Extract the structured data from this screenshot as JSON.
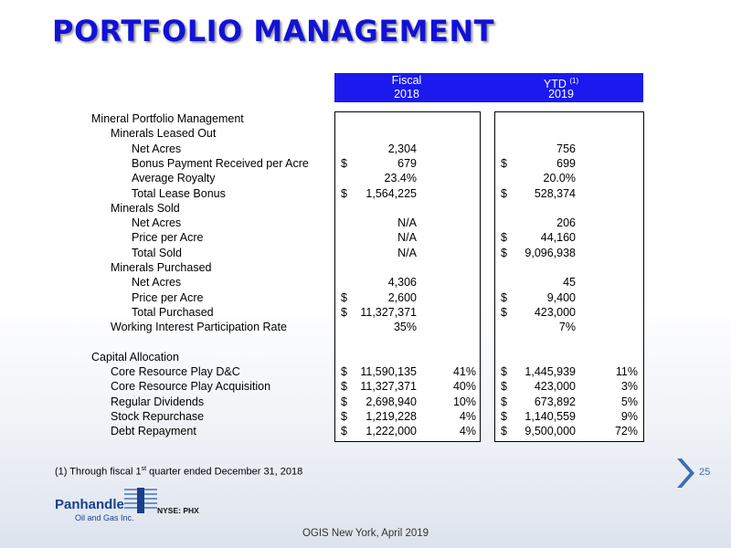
{
  "title": "PORTFOLIO MANAGEMENT",
  "headers": {
    "fiscal_line1": "Fiscal",
    "fiscal_line2": "2018",
    "ytd_line1": "YTD",
    "ytd_sup": "(1)",
    "ytd_line2": "2019"
  },
  "rows": [
    {
      "label": "Mineral Portfolio Management",
      "indent": 0,
      "f_d": "",
      "f_v": "",
      "f_p": "",
      "y_d": "",
      "y_v": "",
      "y_p": ""
    },
    {
      "label": "Minerals Leased Out",
      "indent": 1,
      "f_d": "",
      "f_v": "",
      "f_p": "",
      "y_d": "",
      "y_v": "",
      "y_p": ""
    },
    {
      "label": "Net Acres",
      "indent": 2,
      "f_d": "",
      "f_v": "2,304",
      "f_p": "",
      "y_d": "",
      "y_v": "756",
      "y_p": ""
    },
    {
      "label": "Bonus Payment Received per Acre",
      "indent": 2,
      "f_d": "$",
      "f_v": "679",
      "f_p": "",
      "y_d": "$",
      "y_v": "699",
      "y_p": ""
    },
    {
      "label": "Average Royalty",
      "indent": 2,
      "f_d": "",
      "f_v": "23.4%",
      "f_p": "",
      "y_d": "",
      "y_v": "20.0%",
      "y_p": ""
    },
    {
      "label": "Total Lease Bonus",
      "indent": 2,
      "f_d": "$",
      "f_v": "1,564,225",
      "f_p": "",
      "y_d": "$",
      "y_v": "528,374",
      "y_p": ""
    },
    {
      "label": "Minerals Sold",
      "indent": 1,
      "f_d": "",
      "f_v": "",
      "f_p": "",
      "y_d": "",
      "y_v": "",
      "y_p": ""
    },
    {
      "label": "Net Acres",
      "indent": 2,
      "f_d": "",
      "f_v": "N/A",
      "f_p": "",
      "y_d": "",
      "y_v": "206",
      "y_p": ""
    },
    {
      "label": "Price per Acre",
      "indent": 2,
      "f_d": "",
      "f_v": "N/A",
      "f_p": "",
      "y_d": "$",
      "y_v": "44,160",
      "y_p": ""
    },
    {
      "label": "Total Sold",
      "indent": 2,
      "f_d": "",
      "f_v": "N/A",
      "f_p": "",
      "y_d": "$",
      "y_v": "9,096,938",
      "y_p": ""
    },
    {
      "label": "Minerals Purchased",
      "indent": 1,
      "f_d": "",
      "f_v": "",
      "f_p": "",
      "y_d": "",
      "y_v": "",
      "y_p": ""
    },
    {
      "label": "Net Acres",
      "indent": 2,
      "f_d": "",
      "f_v": "4,306",
      "f_p": "",
      "y_d": "",
      "y_v": "45",
      "y_p": ""
    },
    {
      "label": "Price per Acre",
      "indent": 2,
      "f_d": "$",
      "f_v": "2,600",
      "f_p": "",
      "y_d": "$",
      "y_v": "9,400",
      "y_p": ""
    },
    {
      "label": "Total Purchased",
      "indent": 2,
      "f_d": "$",
      "f_v": "11,327,371",
      "f_p": "",
      "y_d": "$",
      "y_v": "423,000",
      "y_p": ""
    },
    {
      "label": "Working Interest Participation Rate",
      "indent": 1,
      "f_d": "",
      "f_v": "35%",
      "f_p": "",
      "y_d": "",
      "y_v": "7%",
      "y_p": ""
    },
    {
      "label": "",
      "indent": 0,
      "f_d": "",
      "f_v": "",
      "f_p": "",
      "y_d": "",
      "y_v": "",
      "y_p": ""
    },
    {
      "label": "Capital Allocation",
      "indent": 0,
      "f_d": "",
      "f_v": "",
      "f_p": "",
      "y_d": "",
      "y_v": "",
      "y_p": ""
    },
    {
      "label": "Core Resource Play D&C",
      "indent": 1,
      "f_d": "$",
      "f_v": "11,590,135",
      "f_p": "41%",
      "y_d": "$",
      "y_v": "1,445,939",
      "y_p": "11%"
    },
    {
      "label": "Core Resource Play Acquisition",
      "indent": 1,
      "f_d": "$",
      "f_v": "11,327,371",
      "f_p": "40%",
      "y_d": "$",
      "y_v": "423,000",
      "y_p": "3%"
    },
    {
      "label": "Regular Dividends",
      "indent": 1,
      "f_d": "$",
      "f_v": "2,698,940",
      "f_p": "10%",
      "y_d": "$",
      "y_v": "673,892",
      "y_p": "5%"
    },
    {
      "label": "Stock Repurchase",
      "indent": 1,
      "f_d": "$",
      "f_v": "1,219,228",
      "f_p": "4%",
      "y_d": "$",
      "y_v": "1,140,559",
      "y_p": "9%"
    },
    {
      "label": "Debt Repayment",
      "indent": 1,
      "f_d": "$",
      "f_v": "1,222,000",
      "f_p": "4%",
      "y_d": "$",
      "y_v": "9,500,000",
      "y_p": "72%"
    }
  ],
  "footnote_pre": "(1) Through fiscal 1",
  "footnote_sup": "st",
  "footnote_post": " quarter ended December 31, 2018",
  "page_number": "25",
  "logo": {
    "name": "Panhandle",
    "sub": "Oil and Gas Inc.",
    "ticker": "NYSE: PHX"
  },
  "bottom_text": "OGIS New York, April 2019",
  "colors": {
    "title": "#1212d6",
    "header_bg": "#1a1aee",
    "chevron": "#3b6fb6"
  }
}
